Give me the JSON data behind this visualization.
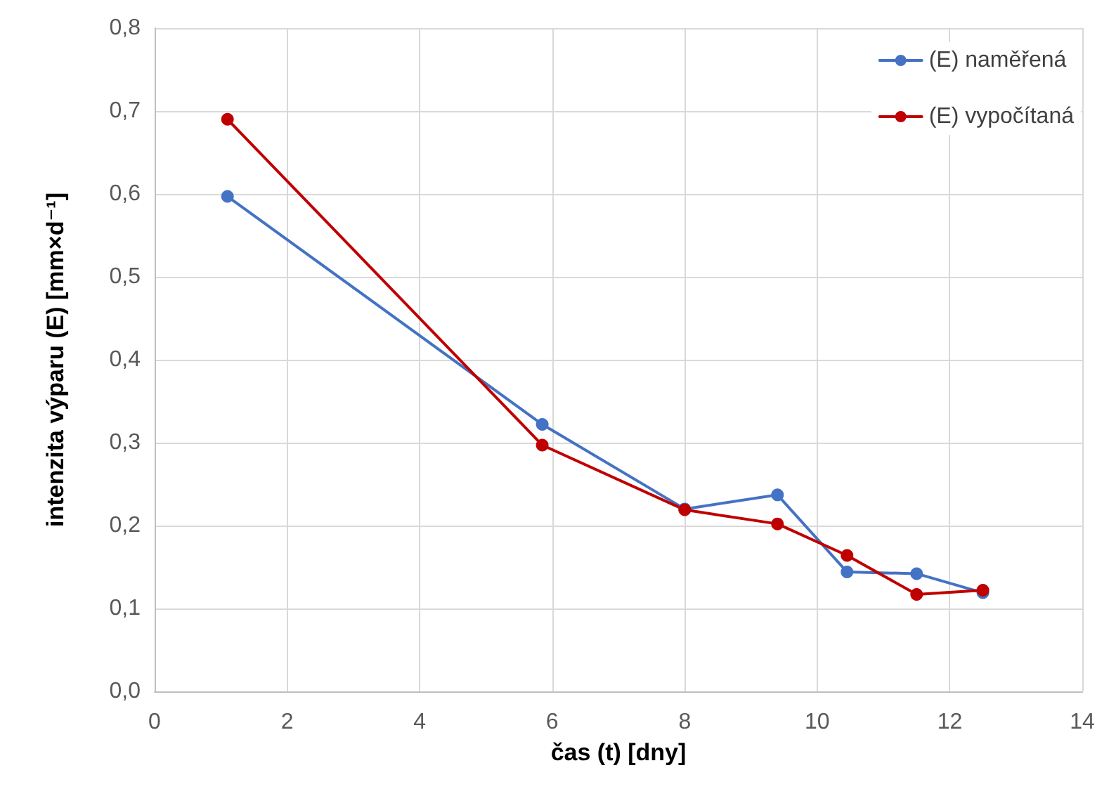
{
  "chart_data": {
    "type": "line",
    "xlabel": "čas (t) [dny]",
    "ylabel": "intenzita výparu (E) [mm×d⁻¹]",
    "xlim": [
      0,
      14
    ],
    "xticks": [
      0,
      2,
      4,
      6,
      8,
      10,
      12,
      14
    ],
    "ylim": [
      0,
      0.8
    ],
    "yticks": [
      {
        "value": 0,
        "label": "0,0"
      },
      {
        "value": 0.1,
        "label": "0,1"
      },
      {
        "value": 0.2,
        "label": "0,2"
      },
      {
        "value": 0.3,
        "label": "0,3"
      },
      {
        "value": 0.4,
        "label": "0,4"
      },
      {
        "value": 0.5,
        "label": "0,5"
      },
      {
        "value": 0.6,
        "label": "0,6"
      },
      {
        "value": 0.7,
        "label": "0,7"
      },
      {
        "value": 0.8,
        "label": "0,8"
      }
    ],
    "grid": true,
    "legend": "top right",
    "marker": "circle",
    "line_style": "solid",
    "series": [
      {
        "name": "(E) naměřená",
        "color": "#4472c4",
        "x": [
          1.1,
          5.85,
          8.0,
          9.4,
          10.45,
          11.5,
          12.5
        ],
        "values": [
          0.597,
          0.322,
          0.22,
          0.237,
          0.144,
          0.142,
          0.119
        ]
      },
      {
        "name": "(E) vypočítaná",
        "color": "#c00000",
        "x": [
          1.1,
          5.85,
          8.0,
          9.4,
          10.45,
          11.5,
          12.5
        ],
        "values": [
          0.69,
          0.297,
          0.219,
          0.202,
          0.164,
          0.117,
          0.122
        ]
      }
    ]
  }
}
